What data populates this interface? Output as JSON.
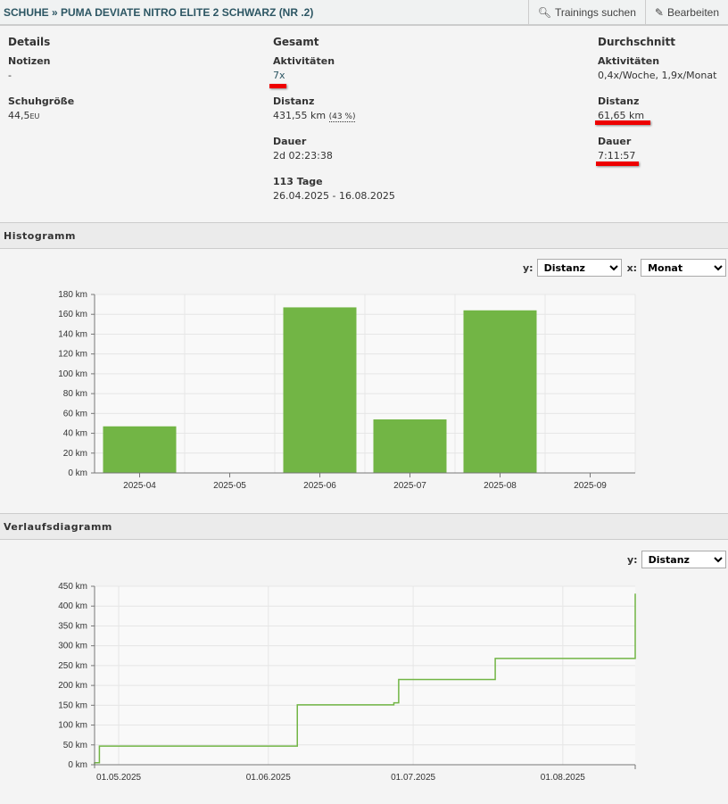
{
  "header": {
    "title": "SCHUHE » PUMA DEVIATE NITRO ELITE 2 SCHWARZ (NR .2)",
    "search_label": "Trainings suchen",
    "edit_label": "Bearbeiten"
  },
  "details": {
    "heading": "Details",
    "notes_label": "Notizen",
    "notes_value": "-",
    "size_label": "Schuhgröße",
    "size_value": "44,5",
    "size_unit": "EU"
  },
  "total": {
    "heading": "Gesamt",
    "activities_label": "Aktivitäten",
    "activities_value": "7x",
    "distance_label": "Distanz",
    "distance_value": "431,55 km",
    "distance_pct": "(43 %)",
    "duration_label": "Dauer",
    "duration_value": "2d 02:23:38",
    "days_label": "113 Tage",
    "days_range": "26.04.2025 - 16.08.2025"
  },
  "average": {
    "heading": "Durchschnitt",
    "activities_label": "Aktivitäten",
    "activities_value": "0,4x/Woche, 1,9x/Monat",
    "distance_label": "Distanz",
    "distance_value": "61,65 km",
    "duration_label": "Dauer",
    "duration_value": "7:11:57"
  },
  "histogram": {
    "heading": "Histogramm",
    "y_label": "y:",
    "y_value": "Distanz",
    "x_label": "x:",
    "x_value": "Monat"
  },
  "history": {
    "heading": "Verlaufsdiagramm",
    "y_label": "y:",
    "y_value": "Distanz"
  },
  "chart_data": [
    {
      "type": "bar",
      "title": "Histogramm",
      "categories": [
        "2025-04",
        "2025-05",
        "2025-06",
        "2025-07",
        "2025-08",
        "2025-09"
      ],
      "values": [
        47,
        0,
        167,
        54,
        164,
        0
      ],
      "ylim": [
        0,
        180
      ],
      "yticks": [
        0,
        20,
        40,
        60,
        80,
        100,
        120,
        140,
        160,
        180
      ],
      "yunit": "km",
      "color": "#72b545",
      "grid": true
    },
    {
      "type": "line",
      "title": "Verlaufsdiagramm",
      "step": true,
      "x": [
        "2025-04-26",
        "2025-04-27",
        "2025-06-07",
        "2025-06-27",
        "2025-06-28",
        "2025-07-18",
        "2025-08-16"
      ],
      "y": [
        5,
        47,
        151,
        156,
        215,
        268,
        431.55
      ],
      "xrange": [
        "2025-04-26",
        "2025-08-16"
      ],
      "xticks": [
        "2025-05-01",
        "2025-06-01",
        "2025-07-01",
        "2025-08-01"
      ],
      "xtick_labels": [
        "01.05.2025",
        "01.06.2025",
        "01.07.2025",
        "01.08.2025"
      ],
      "ylim": [
        0,
        450
      ],
      "yticks": [
        0,
        50,
        100,
        150,
        200,
        250,
        300,
        350,
        400,
        450
      ],
      "yunit": "km",
      "color": "#72b545",
      "grid": true
    }
  ]
}
